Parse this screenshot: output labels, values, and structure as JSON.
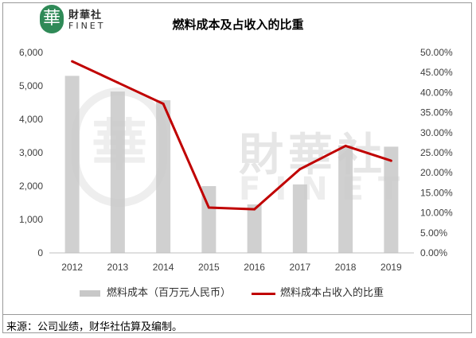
{
  "header": {
    "logo_char": "華",
    "logo_cn": "財華社",
    "logo_en": "FINET"
  },
  "watermark": {
    "cn": "財華社",
    "en": "FINET",
    "logo_char": "華"
  },
  "source": "来源：公司业绩，财华社估算及编制。",
  "colors": {
    "bar": "#c8c8c8",
    "line": "#c00000",
    "logo": "#2f8a57"
  },
  "chart_data": {
    "type": "bar",
    "title": "燃料成本及占收入的比重",
    "categories": [
      "2012",
      "2013",
      "2014",
      "2015",
      "2016",
      "2017",
      "2018",
      "2019"
    ],
    "series": [
      {
        "name": "燃料成本（百万元人民币）",
        "type": "bar",
        "axis": "left",
        "values": [
          5300,
          4830,
          4570,
          2000,
          1450,
          2050,
          3220,
          3180
        ]
      },
      {
        "name": "燃料成本占收入的比重",
        "type": "line",
        "axis": "right",
        "values": [
          47.8,
          42.5,
          37.2,
          11.3,
          10.9,
          20.9,
          26.7,
          23.0
        ]
      }
    ],
    "ylim_left": [
      0,
      6000
    ],
    "yticks_left": [
      "0",
      "1,000",
      "2,000",
      "3,000",
      "4,000",
      "5,000",
      "6,000"
    ],
    "ylim_right": [
      0,
      50
    ],
    "yticks_right": [
      "0.00%",
      "5.00%",
      "10.00%",
      "15.00%",
      "20.00%",
      "25.00%",
      "30.00%",
      "35.00%",
      "40.00%",
      "45.00%",
      "50.00%"
    ],
    "legend_position": "bottom",
    "grid": false
  }
}
